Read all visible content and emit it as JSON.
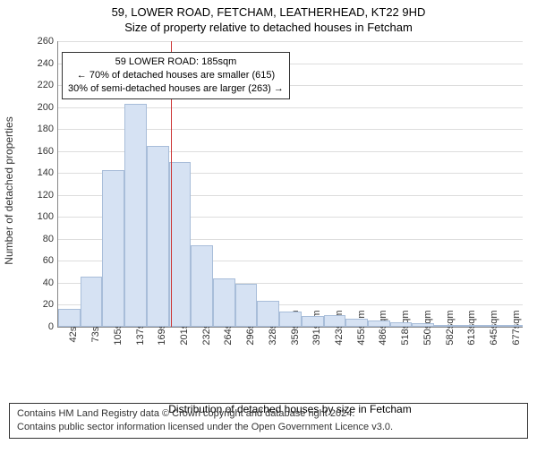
{
  "title_line1": "59, LOWER ROAD, FETCHAM, LEATHERHEAD, KT22 9HD",
  "title_line2": "Size of property relative to detached houses in Fetcham",
  "y_axis_label": "Number of detached properties",
  "x_axis_label": "Distribution of detached houses by size in Fetcham",
  "footer_line1": "Contains HM Land Registry data © Crown copyright and database right 2024.",
  "footer_line2": "Contains public sector information licensed under the Open Government Licence v3.0.",
  "chart": {
    "type": "histogram",
    "ylim": [
      0,
      260
    ],
    "ytick_step": 20,
    "background_color": "#ffffff",
    "grid_color": "#dddddd",
    "bar_fill": "#d6e2f3",
    "bar_border": "#a8bdd9",
    "axis_color": "#888888",
    "text_color": "#333333",
    "label_fontsize": 12,
    "tick_fontsize": 11,
    "categories": [
      "42sqm",
      "73sqm",
      "105sqm",
      "137sqm",
      "169sqm",
      "201sqm",
      "232sqm",
      "264sqm",
      "296sqm",
      "328sqm",
      "359sqm",
      "391sqm",
      "423sqm",
      "455sqm",
      "486sqm",
      "518sqm",
      "550sqm",
      "582sqm",
      "613sqm",
      "645sqm",
      "677sqm"
    ],
    "values": [
      16,
      46,
      143,
      203,
      165,
      150,
      74,
      44,
      39,
      24,
      14,
      10,
      11,
      7,
      6,
      4,
      3,
      2,
      2,
      2,
      2
    ],
    "marker": {
      "color": "#cc3333",
      "value_sqm": 185,
      "line1": "59 LOWER ROAD: 185sqm",
      "line2": "← 70% of detached houses are smaller (615)",
      "line3": "30% of semi-detached houses are larger (263) →"
    }
  }
}
